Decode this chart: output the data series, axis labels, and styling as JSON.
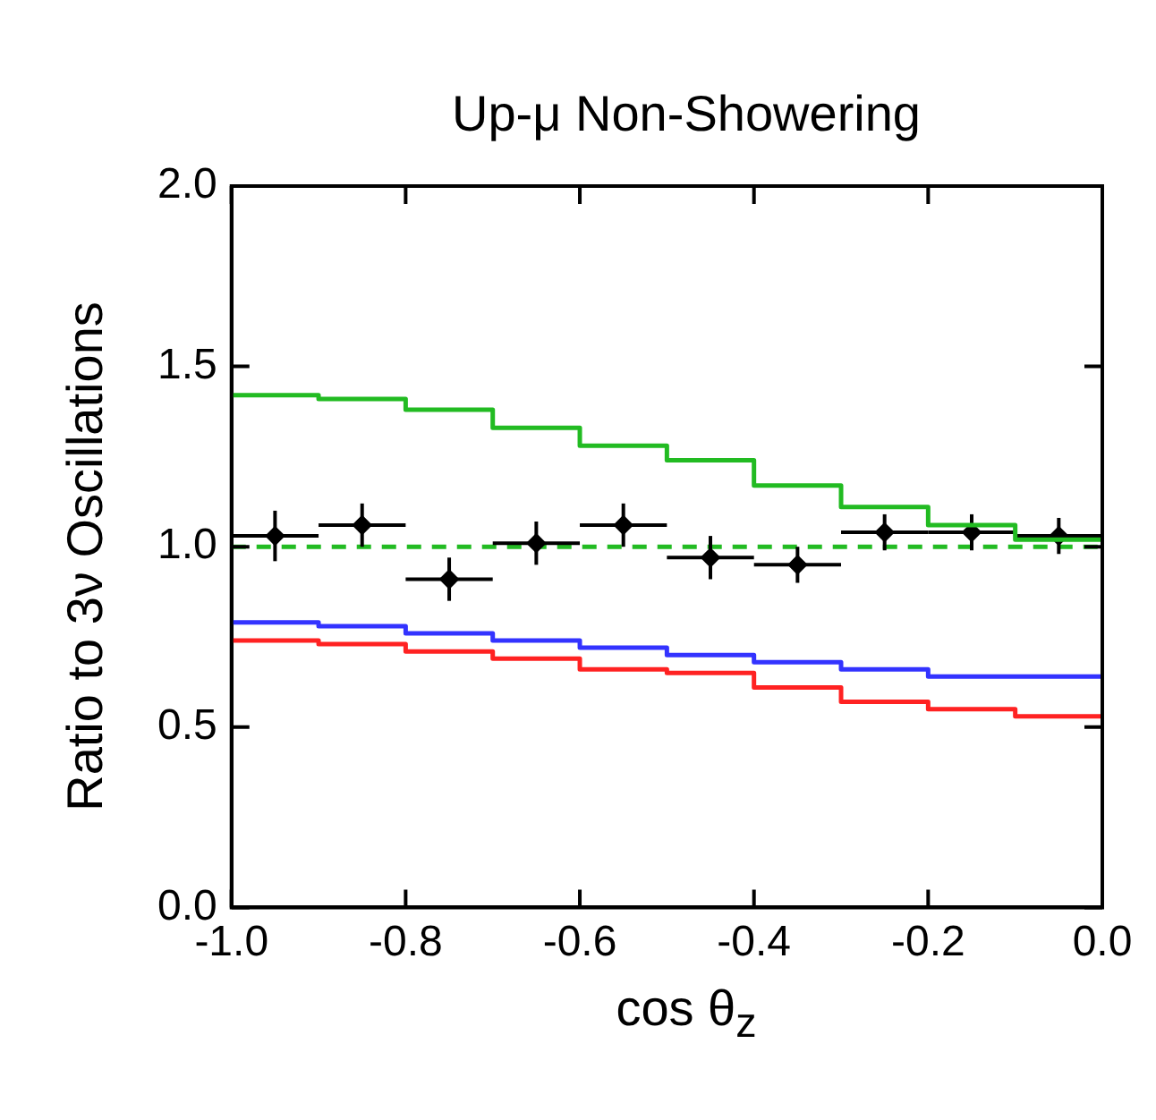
{
  "chart_data": {
    "type": "step",
    "title": "Up-μ Non-Showering",
    "xlabel": "cos θ$_{z}$",
    "ylabel": "Ratio to 3ν Oscillations",
    "xlim": [
      -1.0,
      0.0
    ],
    "xticks": [
      {
        "value": -1.0,
        "label": "-1.0"
      },
      {
        "value": -0.8,
        "label": "-0.8"
      },
      {
        "value": -0.6,
        "label": "-0.6"
      },
      {
        "value": -0.4,
        "label": "-0.4"
      },
      {
        "value": -0.2,
        "label": "-0.2"
      },
      {
        "value": 0,
        "label": "0.0"
      }
    ],
    "ylim": [
      0,
      2.0
    ],
    "yticks": [
      {
        "value": 0,
        "label": "0.0"
      },
      {
        "value": 0.5,
        "label": "0.5"
      },
      {
        "value": 1.0,
        "label": "1.0"
      },
      {
        "value": 1.5,
        "label": "1.5"
      },
      {
        "value": 2.0,
        "label": "2.0"
      }
    ],
    "grid": false,
    "legend": false,
    "marker": "none",
    "line_style": "solid",
    "series": [
      {
        "color": "#22bb22",
        "x": [
          -1.0,
          -0.9,
          -0.8,
          -0.7,
          -0.6,
          -0.5,
          -0.4,
          -0.3,
          -0.2,
          -0.1,
          0.0
        ],
        "values": [
          1.42,
          1.41,
          1.38,
          1.33,
          1.28,
          1.24,
          1.17,
          1.11,
          1.06,
          1.02,
          1.02
        ]
      },
      {
        "color": "#3333ff",
        "x": [
          -1.0,
          -0.9,
          -0.8,
          -0.7,
          -0.6,
          -0.5,
          -0.4,
          -0.3,
          -0.2,
          -0.1,
          0.0
        ],
        "values": [
          0.79,
          0.78,
          0.76,
          0.74,
          0.72,
          0.7,
          0.68,
          0.66,
          0.64,
          0.64,
          0.64
        ]
      },
      {
        "color": "#ff2222",
        "x": [
          -1.0,
          -0.9,
          -0.8,
          -0.7,
          -0.6,
          -0.5,
          -0.4,
          -0.3,
          -0.2,
          -0.1,
          0.0
        ],
        "values": [
          0.74,
          0.73,
          0.71,
          0.69,
          0.66,
          0.65,
          0.61,
          0.57,
          0.55,
          0.53,
          0.53
        ]
      },
      {
        "type": "scatter",
        "color": "#000000",
        "marker": "diamond",
        "x": [
          -0.95,
          -0.85,
          -0.75,
          -0.65,
          -0.55,
          -0.45,
          -0.35,
          -0.25,
          -0.15,
          -0.05
        ],
        "values": [
          1.03,
          1.06,
          0.91,
          1.01,
          1.06,
          0.97,
          0.95,
          1.04,
          1.04,
          1.03
        ],
        "errors": [
          0.07,
          0.06,
          0.06,
          0.06,
          0.06,
          0.06,
          0.05,
          0.05,
          0.05,
          0.05
        ],
        "xerrors": [
          0.05,
          0.05,
          0.05,
          0.05,
          0.05,
          0.05,
          0.05,
          0.05,
          0.05,
          0.05
        ]
      }
    ],
    "ref_lines": [
      {
        "axis": "y",
        "value": 1.0,
        "color": "#22bb22",
        "line_style": "dashed"
      }
    ]
  }
}
